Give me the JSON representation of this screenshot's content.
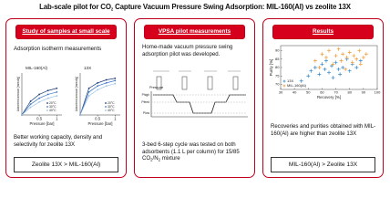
{
  "title": {
    "pre": "Lab-scale pilot for CO",
    "sub": "2",
    "post": " Capture Vacuum Pressure Swing Adsorption: MIL-160(Al) vs zeolite 13X"
  },
  "study": {
    "header": "Study of samples at small scale",
    "subtitle": "Adsorption isotherm measurements",
    "x": [
      0,
      0.25,
      0.5,
      0.75,
      1
    ],
    "xlim": [
      0,
      1.15
    ],
    "xticks": [
      0.5,
      1
    ],
    "ylim": [
      0,
      5.5
    ],
    "xlabel": "Pressure [bar]",
    "ylabel": "Adsorbed amount [mmol/g]",
    "charts": [
      {
        "title": "MIL-160(Al)",
        "series": [
          {
            "name": "20°C",
            "color": "#1f3d7a",
            "values": [
              0,
              1.8,
              2.7,
              3.2,
              3.5
            ]
          },
          {
            "name": "30°C",
            "color": "#3c78c8",
            "values": [
              0,
              1.4,
              2.2,
              2.7,
              3.0
            ]
          },
          {
            "name": "40°C",
            "color": "#9cc3e6",
            "values": [
              0,
              1.0,
              1.7,
              2.2,
              2.5
            ]
          }
        ]
      },
      {
        "title": "13X",
        "series": [
          {
            "name": "20°C",
            "color": "#1f3d7a",
            "values": [
              0,
              3.5,
              4.2,
              4.6,
              4.8
            ]
          },
          {
            "name": "30°C",
            "color": "#3c78c8",
            "values": [
              0,
              3.0,
              3.8,
              4.2,
              4.5
            ]
          },
          {
            "name": "40°C",
            "color": "#9cc3e6",
            "values": [
              0,
              2.5,
              3.3,
              3.8,
              4.1
            ]
          }
        ]
      }
    ],
    "conclusion": "Better working capacity, density and selectivity for zeolite 13X",
    "verdict": "Zeolite 13X > MIL-160(Al)"
  },
  "pilot": {
    "header": "VPSA pilot measurements",
    "intro": "Home-made vacuum pressure swing adsorption pilot was developed.",
    "axis_label": "Pressure",
    "levels": [
      "Phigh",
      "Pfeed",
      "Plow"
    ],
    "cycle": {
      "pre": "3-bed 6-step cycle was tested on both adsorbents (1.1 L per column) for 15/85 CO",
      "sub1": "2",
      "mid": "/N",
      "sub2": "2",
      "post": " mixture"
    }
  },
  "results": {
    "header": "Results",
    "chart_data": {
      "type": "scatter",
      "xlabel": "Recovery [%]",
      "ylabel": "Purity [%]",
      "xlim": [
        30,
        100
      ],
      "xticks": [
        30,
        40,
        50,
        60,
        70,
        80,
        90,
        100
      ],
      "ylim": [
        67,
        93
      ],
      "yticks": [
        70,
        75,
        80,
        85,
        90
      ],
      "legend": "lower-left",
      "series": [
        {
          "name": "13X",
          "color": "#2e86c8",
          "x": [
            45,
            50,
            52,
            55,
            58,
            60,
            62,
            63,
            65,
            67,
            68,
            70,
            72,
            73,
            75,
            78,
            80,
            82,
            85,
            88
          ],
          "values": [
            72,
            75,
            78,
            80,
            76,
            82,
            79,
            84,
            77,
            81,
            74,
            83,
            79,
            76,
            80,
            85,
            78,
            82,
            80,
            84
          ]
        },
        {
          "name": "MIL-160(Al)",
          "color": "#f0962a",
          "x": [
            55,
            58,
            60,
            63,
            65,
            68,
            70,
            72,
            74,
            75,
            77,
            78,
            80,
            82,
            83,
            85,
            87,
            88,
            90,
            92
          ],
          "values": [
            84,
            80,
            88,
            86,
            90,
            82,
            87,
            91,
            84,
            88,
            79,
            86,
            89,
            83,
            87,
            85,
            90,
            82,
            86,
            88
          ]
        }
      ]
    },
    "conclusion": "Recoveries and purities obtained with MIL-160(Al) are higher than zeolite 13X",
    "verdict": "MIL-160(Al) > Zeolite 13X"
  }
}
